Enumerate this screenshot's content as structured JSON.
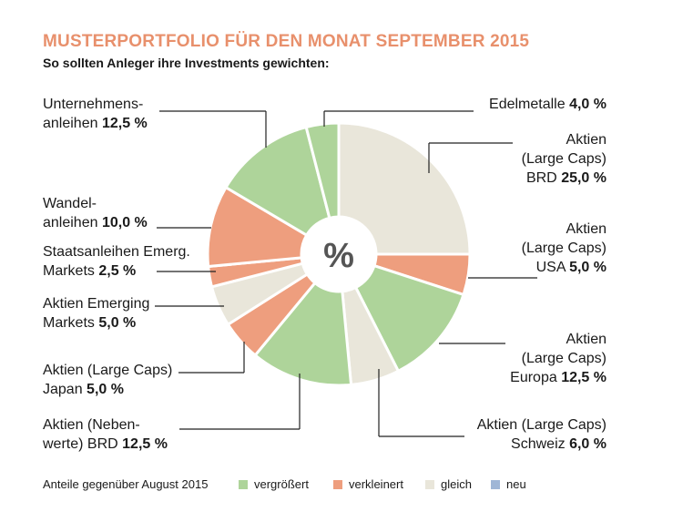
{
  "title": "MUSTERPORTFOLIO FÜR DEN MONAT SEPTEMBER 2015",
  "subtitle": "So sollten Anleger ihre Investments gewichten:",
  "colors": {
    "vergroessert": "#aed49a",
    "verkleinert": "#ee9e7e",
    "gleich": "#e9e6da",
    "neu": "#9fb6d6",
    "accent": "#e8906c"
  },
  "chart_data": {
    "type": "pie",
    "center_label": "%",
    "slices": [
      {
        "id": "aktien-brd",
        "lines": [
          "Aktien",
          "(Large Caps)",
          "BRD"
        ],
        "value": 25.0,
        "value_text": "25,0 %",
        "change": "gleich"
      },
      {
        "id": "aktien-usa",
        "lines": [
          "Aktien",
          "(Large Caps)",
          "USA"
        ],
        "value": 5.0,
        "value_text": "5,0 %",
        "change": "verkleinert"
      },
      {
        "id": "aktien-europa",
        "lines": [
          "Aktien",
          "(Large Caps)",
          "Europa"
        ],
        "value": 12.5,
        "value_text": "12,5 %",
        "change": "vergroessert"
      },
      {
        "id": "aktien-schweiz",
        "lines": [
          "Aktien (Large Caps)",
          "Schweiz"
        ],
        "value": 6.0,
        "value_text": "6,0 %",
        "change": "gleich"
      },
      {
        "id": "aktien-nebenwerte-brd",
        "lines": [
          "Aktien (Neben-",
          "werte) BRD"
        ],
        "value": 12.5,
        "value_text": "12,5 %",
        "change": "vergroessert"
      },
      {
        "id": "aktien-japan",
        "lines": [
          "Aktien (Large Caps)",
          "Japan"
        ],
        "value": 5.0,
        "value_text": "5,0 %",
        "change": "verkleinert"
      },
      {
        "id": "aktien-emerging-markets",
        "lines": [
          "Aktien Emerging",
          "Markets"
        ],
        "value": 5.0,
        "value_text": "5,0 %",
        "change": "gleich"
      },
      {
        "id": "staatsanleihen-emerg-markets",
        "lines": [
          "Staatsanleihen Emerg.",
          "Markets"
        ],
        "value": 2.5,
        "value_text": "2,5 %",
        "change": "verkleinert"
      },
      {
        "id": "wandelanleihen",
        "lines": [
          "Wandel-",
          "anleihen"
        ],
        "value": 10.0,
        "value_text": "10,0 %",
        "change": "verkleinert"
      },
      {
        "id": "unternehmensanleihen",
        "lines": [
          "Unternehmens-",
          "anleihen"
        ],
        "value": 12.5,
        "value_text": "12,5 %",
        "change": "vergroessert"
      },
      {
        "id": "edelmetalle",
        "lines": [
          "Edelmetalle"
        ],
        "value": 4.0,
        "value_text": "4,0 %",
        "change": "vergroessert"
      }
    ]
  },
  "legend": {
    "caption": "Anteile gegenüber August 2015",
    "items": [
      {
        "key": "vergroessert",
        "label": "vergrößert"
      },
      {
        "key": "verkleinert",
        "label": "verkleinert"
      },
      {
        "key": "gleich",
        "label": "gleich"
      },
      {
        "key": "neu",
        "label": "neu"
      }
    ]
  }
}
